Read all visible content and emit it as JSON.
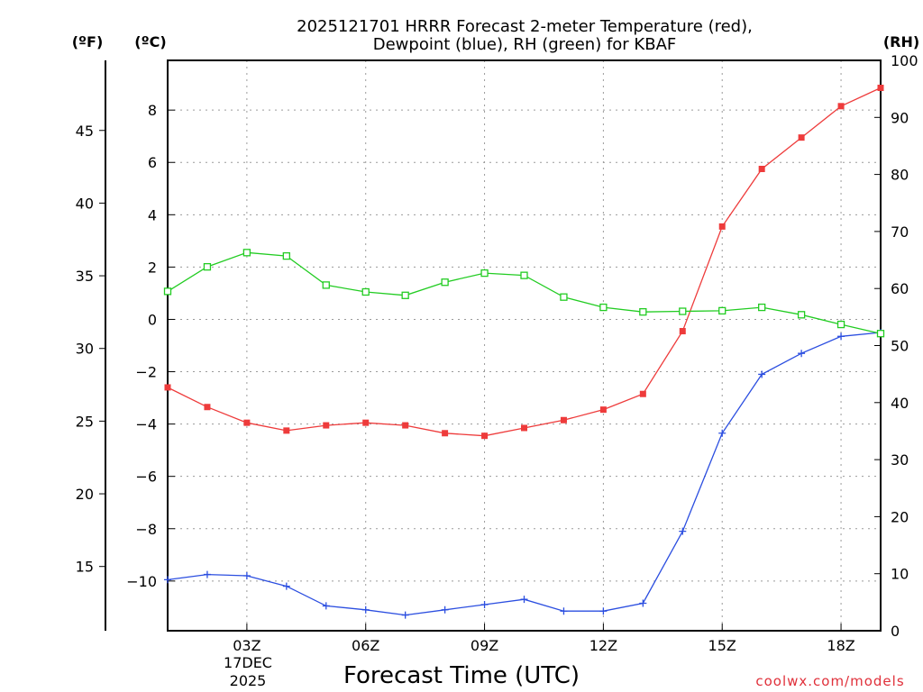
{
  "chart_data": {
    "type": "line",
    "title_line1": "2025121701 HRRR Forecast 2-meter Temperature (red),",
    "title_line2": "Dewpoint (blue), RH (green) for KBAF",
    "xlabel": "Forecast Time (UTC)",
    "credit": "coolwx.com/models",
    "units": {
      "f": "(ºF)",
      "c": "(ºC)",
      "rh": "(RH)"
    },
    "x": [
      1,
      2,
      3,
      4,
      5,
      6,
      7,
      8,
      9,
      10,
      11,
      12,
      13,
      14,
      15,
      16,
      17,
      18,
      19
    ],
    "xlim": [
      1,
      19
    ],
    "x_ticks": [
      {
        "x": 3,
        "label": "03Z"
      },
      {
        "x": 6,
        "label": "06Z"
      },
      {
        "x": 9,
        "label": "09Z"
      },
      {
        "x": 12,
        "label": "12Z"
      },
      {
        "x": 15,
        "label": "15Z"
      },
      {
        "x": 18,
        "label": "18Z"
      }
    ],
    "date_label_line1": "17DEC",
    "date_label_line2": "2025",
    "celsius_axis": {
      "ylim": [
        -11.9,
        9.9
      ],
      "ticks": [
        8,
        6,
        4,
        2,
        0,
        -2,
        -4,
        -6,
        -8,
        -10
      ]
    },
    "fahrenheit_axis": {
      "ticks": [
        45,
        40,
        35,
        30,
        25,
        20,
        15
      ]
    },
    "rh_axis": {
      "ylim": [
        0,
        100
      ],
      "ticks": [
        0,
        10,
        20,
        30,
        40,
        50,
        60,
        70,
        80,
        90,
        100
      ]
    },
    "series": [
      {
        "name": "Temperature",
        "axis": "c",
        "color": "#ee3b3b",
        "marker": "filled-square",
        "values": [
          -2.6,
          -3.35,
          -3.95,
          -4.25,
          -4.05,
          -3.95,
          -4.05,
          -4.35,
          -4.45,
          -4.15,
          -3.85,
          -3.45,
          -2.85,
          -0.45,
          3.55,
          5.75,
          6.95,
          8.15,
          8.85
        ]
      },
      {
        "name": "Dewpoint",
        "axis": "c",
        "color": "#2b4ee0",
        "marker": "plus",
        "values": [
          -9.95,
          -9.75,
          -9.8,
          -10.2,
          -10.95,
          -11.1,
          -11.3,
          -11.1,
          -10.9,
          -10.7,
          -11.15,
          -11.15,
          -10.85,
          -8.1,
          -4.35,
          -2.1,
          -1.3,
          -0.65,
          -0.5
        ]
      },
      {
        "name": "RH",
        "axis": "rh",
        "color": "#22cc22",
        "marker": "open-square",
        "values": [
          59.5,
          63.8,
          66.3,
          65.7,
          60.6,
          59.4,
          58.8,
          61.1,
          62.7,
          62.3,
          58.5,
          56.7,
          55.9,
          56.0,
          56.1,
          56.7,
          55.4,
          53.7,
          52.1
        ]
      }
    ]
  }
}
